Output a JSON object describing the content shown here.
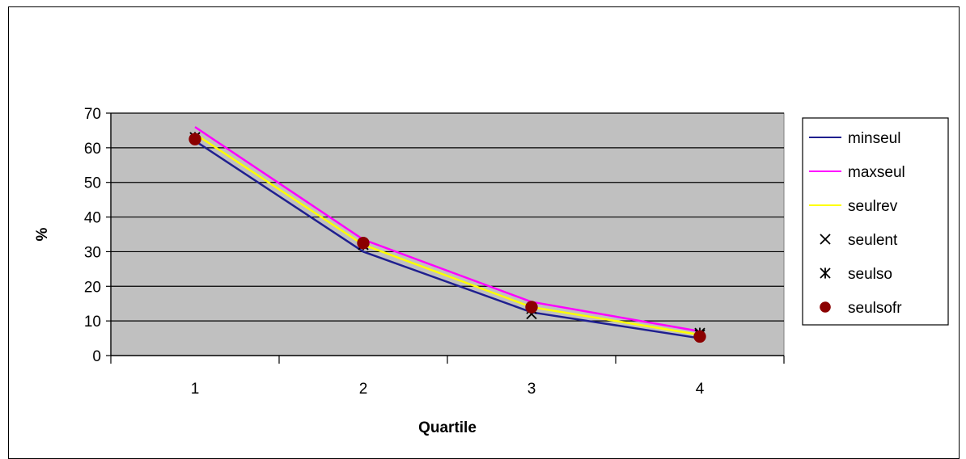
{
  "chart_data": {
    "type": "line",
    "title": "",
    "xlabel": "Quartile",
    "ylabel": "%",
    "x": [
      1,
      2,
      3,
      4
    ],
    "ylim": [
      0,
      70
    ],
    "yticks": [
      0,
      10,
      20,
      30,
      40,
      50,
      60,
      70
    ],
    "grid": true,
    "legend_position": "right",
    "plot_background": "#c0c0c0",
    "series": [
      {
        "name": "minseul",
        "values": [
          62,
          30,
          12.5,
          5
        ],
        "color": "#1f1f8f",
        "style": "line"
      },
      {
        "name": "maxseul",
        "values": [
          66,
          33.5,
          15.5,
          7
        ],
        "color": "#ff00ff",
        "style": "line"
      },
      {
        "name": "seulrev",
        "values": [
          64,
          32,
          14,
          6
        ],
        "color": "#ffff00",
        "style": "line"
      },
      {
        "name": "seulent",
        "values": [
          63,
          32,
          12,
          6
        ],
        "color": "#000000",
        "style": "marker",
        "marker": "x"
      },
      {
        "name": "seulso",
        "values": [
          63,
          32,
          13.5,
          6.5
        ],
        "color": "#000000",
        "style": "marker",
        "marker": "asterisk"
      },
      {
        "name": "seulsofr",
        "values": [
          62.5,
          32.5,
          14,
          5.5
        ],
        "color": "#8b0000",
        "style": "marker",
        "marker": "circle"
      }
    ]
  }
}
